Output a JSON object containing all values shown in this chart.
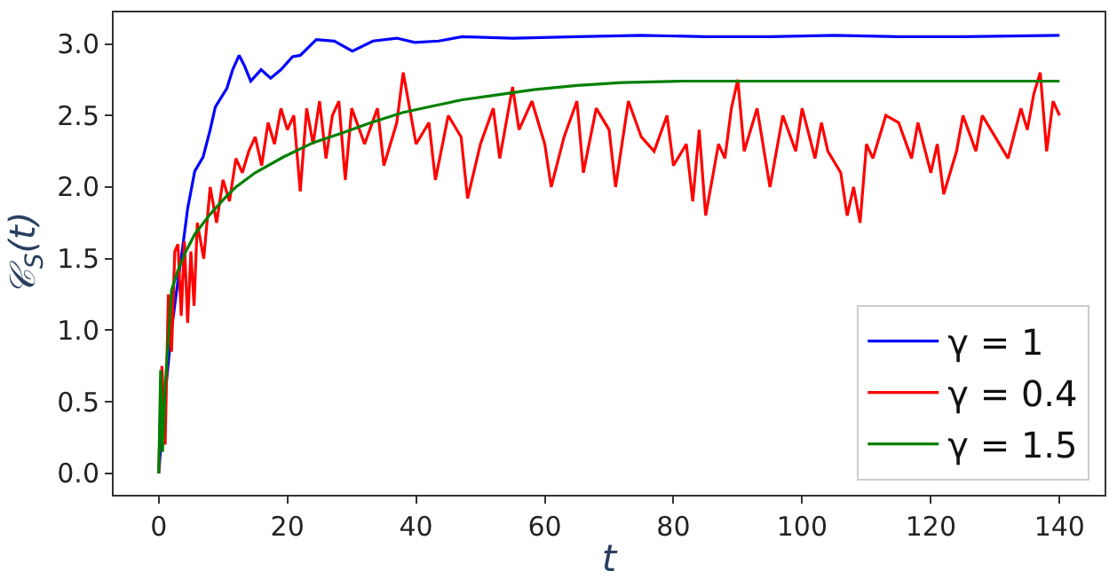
{
  "chart_data": {
    "type": "line",
    "xlabel": "t",
    "ylabel": "𝒞$_{S}$(t)",
    "xlim": [
      -7,
      147
    ],
    "ylim": [
      -0.15,
      3.22
    ],
    "xticks": [
      0,
      20,
      40,
      60,
      80,
      100,
      120,
      140
    ],
    "yticks": [
      {
        "value": 0,
        "label": "0.0"
      },
      {
        "value": 0.5,
        "label": "0.5"
      },
      {
        "value": 1,
        "label": "1.0"
      },
      {
        "value": 1.5,
        "label": "1.5"
      },
      {
        "value": 2,
        "label": "2.0"
      },
      {
        "value": 2.5,
        "label": "2.5"
      },
      {
        "value": 3,
        "label": "3.0"
      }
    ],
    "legend": "bottom right",
    "marker": "none",
    "line_style": "solid",
    "series": [
      {
        "name": "γ = 1",
        "color": "#0000ff",
        "x": [
          0,
          1,
          2,
          3,
          3.7,
          4.5,
          5.6,
          6.9,
          8,
          8.8,
          10.6,
          11.5,
          12.5,
          13.3,
          14.3,
          15.9,
          17.4,
          19,
          20.8,
          22,
          24.5,
          27.3,
          30.1,
          33.3,
          37,
          39.8,
          43.5,
          47.2,
          55,
          65,
          75,
          85,
          95,
          105,
          115,
          125,
          140
        ],
        "values": [
          0,
          0.55,
          1.0,
          1.35,
          1.57,
          1.85,
          2.11,
          2.21,
          2.4,
          2.56,
          2.69,
          2.82,
          2.92,
          2.85,
          2.74,
          2.82,
          2.76,
          2.82,
          2.91,
          2.92,
          3.03,
          3.02,
          2.95,
          3.02,
          3.04,
          3.01,
          3.02,
          3.05,
          3.04,
          3.05,
          3.06,
          3.05,
          3.05,
          3.06,
          3.05,
          3.05,
          3.06
        ]
      },
      {
        "name": "γ = 0.4",
        "color": "#ff0000",
        "x": [
          0,
          0.5,
          1,
          1.5,
          2,
          2.5,
          3,
          3.5,
          4,
          4.5,
          5,
          5.5,
          6,
          7,
          8,
          9,
          10,
          11,
          12,
          13,
          14,
          15,
          16,
          17,
          18,
          19,
          20,
          21,
          22,
          23,
          24,
          25,
          26,
          27,
          28,
          29,
          30,
          32,
          34,
          35,
          37,
          38,
          40,
          42,
          43,
          45,
          47,
          48,
          50,
          52,
          53,
          55,
          56,
          58,
          60,
          61,
          63,
          65,
          66,
          68,
          70,
          71,
          73,
          75,
          77,
          79,
          80,
          82,
          83,
          84,
          85,
          87,
          88,
          89,
          90,
          91,
          93,
          95,
          97,
          99,
          100,
          102,
          103,
          104,
          106,
          107,
          108,
          109,
          110,
          111,
          113,
          115,
          117,
          118,
          120,
          121,
          122,
          124,
          125,
          127,
          128,
          130,
          132,
          134,
          135,
          136,
          137,
          138,
          139,
          140
        ],
        "values": [
          0,
          0.75,
          0.2,
          1.25,
          0.85,
          1.55,
          1.6,
          1.1,
          1.62,
          1.05,
          1.55,
          1.17,
          1.75,
          1.5,
          2.0,
          1.75,
          2.05,
          1.9,
          2.2,
          2.1,
          2.25,
          2.35,
          2.15,
          2.45,
          2.3,
          2.55,
          2.4,
          2.5,
          1.97,
          2.55,
          2.3,
          2.6,
          2.2,
          2.5,
          2.6,
          2.05,
          2.55,
          2.3,
          2.55,
          2.15,
          2.45,
          2.8,
          2.3,
          2.45,
          2.05,
          2.5,
          2.35,
          1.92,
          2.3,
          2.55,
          2.2,
          2.7,
          2.4,
          2.6,
          2.3,
          2.0,
          2.35,
          2.6,
          2.1,
          2.55,
          2.4,
          2.0,
          2.6,
          2.35,
          2.25,
          2.5,
          2.15,
          2.3,
          1.9,
          2.4,
          1.8,
          2.3,
          2.2,
          2.55,
          2.75,
          2.25,
          2.55,
          2.0,
          2.5,
          2.25,
          2.55,
          2.2,
          2.45,
          2.25,
          2.1,
          1.8,
          2.0,
          1.75,
          2.3,
          2.2,
          2.5,
          2.45,
          2.2,
          2.45,
          2.1,
          2.3,
          1.95,
          2.25,
          2.5,
          2.25,
          2.5,
          2.35,
          2.2,
          2.55,
          2.4,
          2.65,
          2.8,
          2.25,
          2.6,
          2.5
        ]
      },
      {
        "name": "γ = 1.5",
        "color": "#008000",
        "x": [
          0,
          0.3,
          0.6,
          1,
          2,
          3,
          4,
          5.6,
          8,
          10.2,
          12,
          15,
          19.4,
          24,
          28.7,
          33,
          37.9,
          42,
          47.2,
          52,
          58.3,
          65,
          72,
          81.4,
          90,
          100,
          120,
          140
        ],
        "values": [
          0,
          0.72,
          0.15,
          0.6,
          1.28,
          1.42,
          1.53,
          1.67,
          1.81,
          1.92,
          2.0,
          2.1,
          2.21,
          2.31,
          2.38,
          2.45,
          2.52,
          2.56,
          2.61,
          2.64,
          2.68,
          2.71,
          2.73,
          2.74,
          2.74,
          2.74,
          2.74,
          2.74
        ]
      }
    ]
  }
}
